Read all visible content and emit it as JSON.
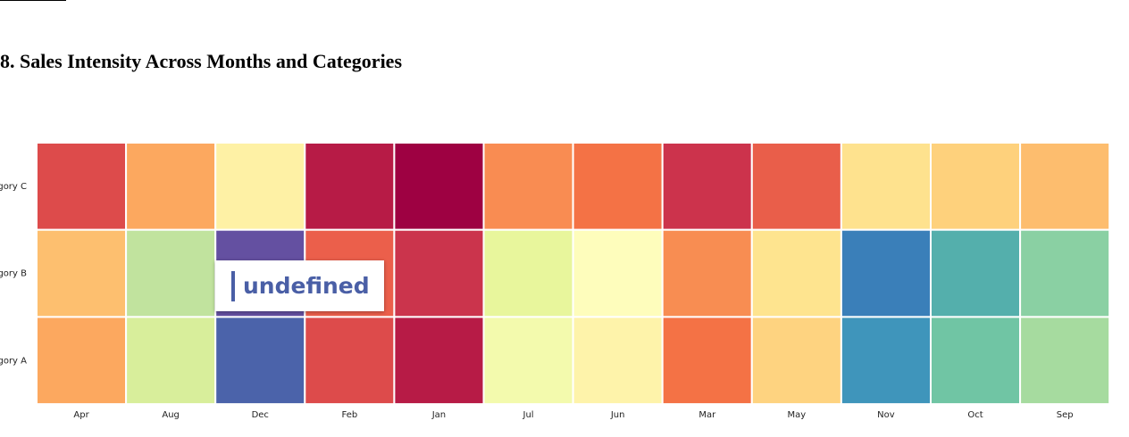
{
  "page": {
    "title": "8. Sales Intensity Across Months and Categories"
  },
  "tooltip": {
    "text": "undefined"
  },
  "chart_data": {
    "type": "heatmap",
    "colormap": "Spectral",
    "x_categories": [
      "Apr",
      "Aug",
      "Dec",
      "Feb",
      "Jan",
      "Jul",
      "Jun",
      "Mar",
      "May",
      "Nov",
      "Oct",
      "Sep"
    ],
    "y_categories": [
      "gory C",
      "gory B",
      "gory A"
    ],
    "cells": [
      [
        "#dd4b4b",
        "#fca85f",
        "#fef1a5",
        "#b71b46",
        "#9e0142",
        "#f98c52",
        "#f47245",
        "#cc334c",
        "#e95e4a",
        "#fee28e",
        "#fed17c",
        "#fdbd6e"
      ],
      [
        "#fdbf6f",
        "#c1e39e",
        "#6450a1",
        "#eb5f4b",
        "#cb344c",
        "#e8f69c",
        "#fefdbc",
        "#f88d52",
        "#fee48f",
        "#3a7fb9",
        "#54afac",
        "#8ad0a3"
      ],
      [
        "#fca85f",
        "#d8ee9b",
        "#4b63aa",
        "#dd4b4b",
        "#b71b46",
        "#f3faad",
        "#fef3aa",
        "#f47245",
        "#fed380",
        "#3f95bb",
        "#70c5a4",
        "#a6db9f"
      ]
    ]
  }
}
